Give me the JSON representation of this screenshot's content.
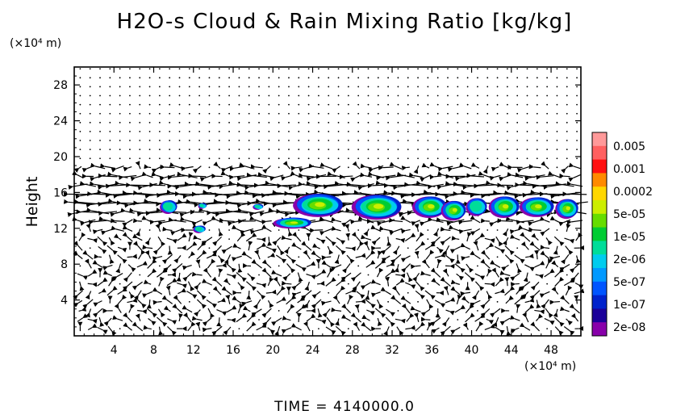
{
  "title": "H2O-s Cloud & Rain Mixing Ratio [kg/kg]",
  "y_unit": "(×10⁴ m)",
  "x_unit": "(×10⁴ m)",
  "time_label": "TIME  =  4140000.0",
  "chart_data": {
    "type": "heatmap",
    "title": "H2O-s Cloud & Rain Mixing Ratio [kg/kg]",
    "xlabel": "",
    "ylabel": "Height",
    "x_unit": "(×10⁴ m)",
    "y_unit": "(×10⁴ m)",
    "xlim": [
      0,
      51
    ],
    "ylim": [
      0,
      30
    ],
    "xticks": [
      4,
      8,
      12,
      16,
      20,
      24,
      28,
      32,
      36,
      40,
      44,
      48
    ],
    "yticks": [
      4,
      8,
      12,
      16,
      20,
      24,
      28
    ],
    "colorbar": {
      "levels": [
        "0.005",
        "0.001",
        "0.0002",
        "5e-05",
        "1e-05",
        "2e-06",
        "5e-07",
        "1e-07",
        "2e-08"
      ],
      "colors": [
        "#ff9999",
        "#ff6060",
        "#ff1010",
        "#ff8a00",
        "#ffd700",
        "#ccee00",
        "#66dd00",
        "#00cc33",
        "#00dd99",
        "#00ccee",
        "#0099ff",
        "#0055ff",
        "#0022cc",
        "#1a0099",
        "#8800aa"
      ]
    },
    "cloud_cells": [
      {
        "x": 9.5,
        "y": 14.4,
        "w": 1.6,
        "h": 1.5
      },
      {
        "x": 12.9,
        "y": 14.5,
        "w": 0.7,
        "h": 0.6
      },
      {
        "x": 12.6,
        "y": 11.9,
        "w": 1.1,
        "h": 0.8
      },
      {
        "x": 18.5,
        "y": 14.4,
        "w": 0.9,
        "h": 0.6
      },
      {
        "x": 22.0,
        "y": 12.6,
        "w": 3.8,
        "h": 1.2
      },
      {
        "x": 24.6,
        "y": 14.6,
        "w": 5.0,
        "h": 2.6
      },
      {
        "x": 30.5,
        "y": 14.4,
        "w": 5.0,
        "h": 2.8
      },
      {
        "x": 35.8,
        "y": 14.4,
        "w": 3.4,
        "h": 2.4
      },
      {
        "x": 38.2,
        "y": 14.0,
        "w": 2.4,
        "h": 2.2
      },
      {
        "x": 40.5,
        "y": 14.4,
        "w": 2.0,
        "h": 2.0
      },
      {
        "x": 43.3,
        "y": 14.4,
        "w": 3.0,
        "h": 2.4
      },
      {
        "x": 46.6,
        "y": 14.4,
        "w": 3.4,
        "h": 2.2
      },
      {
        "x": 49.6,
        "y": 14.2,
        "w": 2.2,
        "h": 2.2
      }
    ],
    "wind_field": "easterly jet near 13–19 ×10⁴ m height; weak flow elsewhere"
  }
}
